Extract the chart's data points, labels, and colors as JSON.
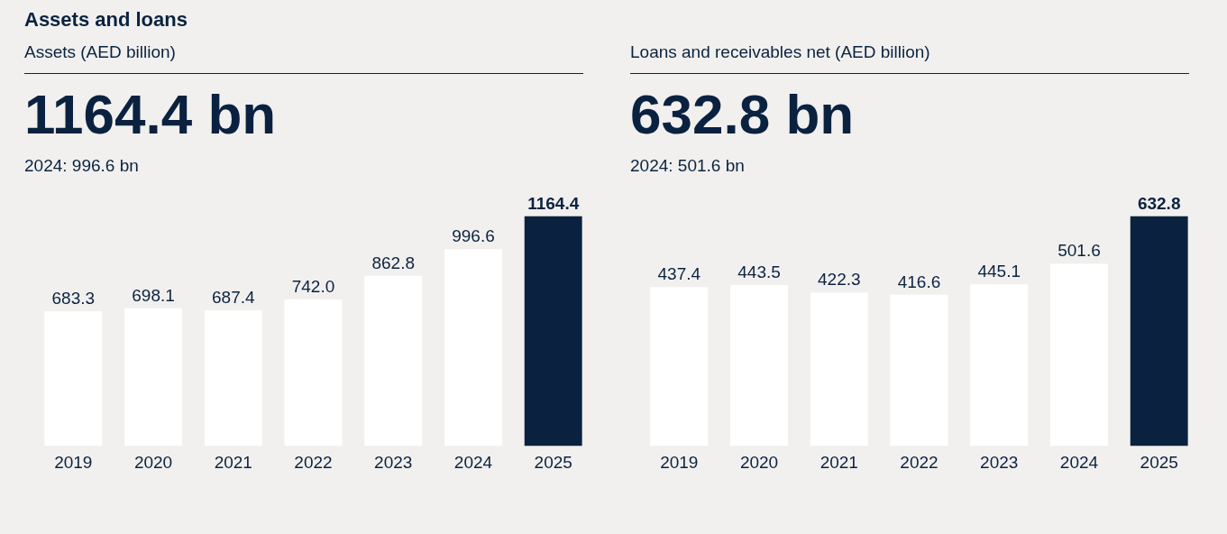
{
  "chart_data": [
    {
      "type": "bar",
      "title": "Assets and loans",
      "subtitle": "Assets (AED billion)",
      "annotations": [
        "1164.4 bn",
        "2024: 996.6 bn"
      ],
      "categories": [
        "2019",
        "2020",
        "2021",
        "2022",
        "2023",
        "2024",
        "2025"
      ],
      "values": [
        683.3,
        698.1,
        687.4,
        742.0,
        862.8,
        996.6,
        1164.4
      ],
      "value_labels": [
        "683.3",
        "698.1",
        "687.4",
        "742.0",
        "862.8",
        "996.6",
        "1164.4"
      ],
      "colors": [
        "#ffffff",
        "#ffffff",
        "#ffffff",
        "#ffffff",
        "#ffffff",
        "#ffffff",
        "#0a2240"
      ]
    },
    {
      "type": "bar",
      "subtitle": "Loans and receivables net (AED billion)",
      "annotations": [
        "632.8 bn",
        "2024: 501.6 bn"
      ],
      "categories": [
        "2019",
        "2020",
        "2021",
        "2022",
        "2023",
        "2024",
        "2025"
      ],
      "values": [
        437.4,
        443.5,
        422.3,
        416.6,
        445.1,
        501.6,
        632.8
      ],
      "value_labels": [
        "437.4",
        "443.5",
        "422.3",
        "416.6",
        "445.1",
        "501.6",
        "632.8"
      ],
      "colors": [
        "#ffffff",
        "#ffffff",
        "#ffffff",
        "#ffffff",
        "#ffffff",
        "#ffffff",
        "#0a2240"
      ]
    }
  ]
}
